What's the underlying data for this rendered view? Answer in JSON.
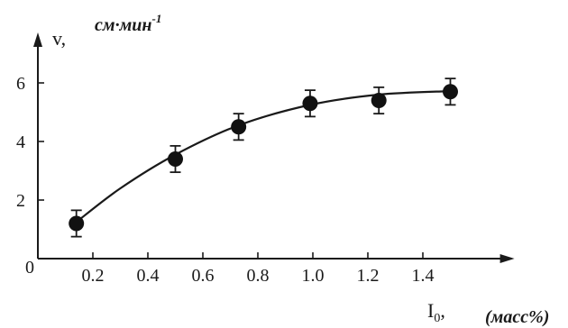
{
  "chart_data": {
    "type": "scatter",
    "ylabel": "v,",
    "ylabel_unit": "см·мин",
    "ylabel_unit_exp": "-1",
    "xlabel": "I",
    "xlabel_sub": "0",
    "xlabel_comma": ",",
    "xlabel_unit": "(масс%)",
    "origin_label": "0",
    "xlim": [
      0.0,
      1.72
    ],
    "ylim": [
      0,
      7.6
    ],
    "x_ticks": [
      0.2,
      0.4,
      0.6,
      0.8,
      1.0,
      1.2,
      1.4
    ],
    "x_tick_labels": [
      "0.2",
      "0.4",
      "0.6",
      "0.8",
      "1.0",
      "1.2",
      "1.4"
    ],
    "y_ticks": [
      2,
      4,
      6
    ],
    "y_tick_labels": [
      "2",
      "4",
      "6"
    ],
    "grid": false,
    "points": [
      {
        "x": 0.14,
        "y": 1.2,
        "err": 0.45
      },
      {
        "x": 0.5,
        "y": 3.4,
        "err": 0.45
      },
      {
        "x": 0.73,
        "y": 4.5,
        "err": 0.45
      },
      {
        "x": 0.99,
        "y": 5.3,
        "err": 0.45
      },
      {
        "x": 1.24,
        "y": 5.4,
        "err": 0.45
      },
      {
        "x": 1.5,
        "y": 5.7,
        "err": 0.45
      }
    ],
    "fit_curve": {
      "x": [
        0.14,
        0.3,
        0.5,
        0.73,
        0.99,
        1.24,
        1.5
      ],
      "y": [
        1.25,
        2.4,
        3.55,
        4.55,
        5.25,
        5.6,
        5.72
      ]
    }
  }
}
